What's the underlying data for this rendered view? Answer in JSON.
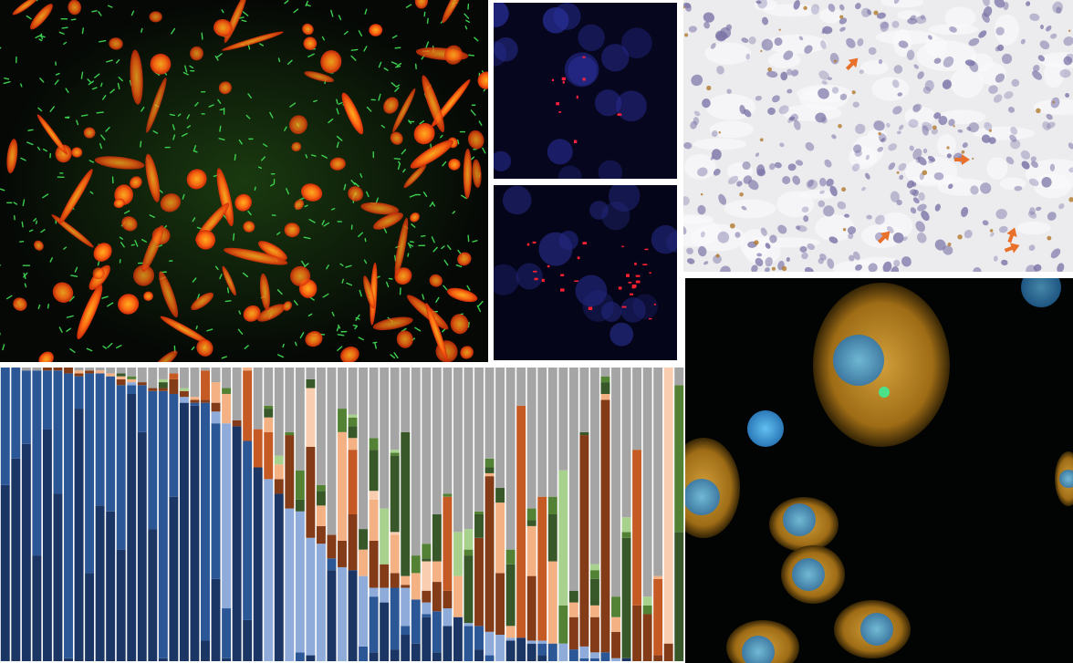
{
  "panels": {
    "fluorescence_red_green": {
      "icon": "microscopy-image",
      "colors": {
        "background": "#050805",
        "cells": "#ff5a14",
        "bacteria": "#3ccf4e"
      }
    },
    "fluorescence_blue_top": {
      "icon": "microscopy-image",
      "colors": {
        "background": "#06061e",
        "nuclei": "#2a2f9a",
        "signal": "#ff2040"
      }
    },
    "fluorescence_blue_bottom": {
      "icon": "microscopy-image",
      "colors": {
        "background": "#05051a",
        "nuclei": "#23287e",
        "signal": "#ff2030"
      }
    },
    "histology_stain": {
      "icon": "microscopy-image",
      "colors": {
        "background": "#ecebee",
        "nuclei": "#7c76a8",
        "stain": "#b0782a",
        "arrows": "#e8702a"
      }
    },
    "confocal_cells": {
      "icon": "microscopy-image",
      "colors": {
        "background": "#020303",
        "cytoplasm": "#d99a2a",
        "nuclei": "#3aa0d8",
        "inclusion": "#4be08a"
      }
    }
  },
  "chart_data": {
    "type": "bar",
    "stacked": true,
    "normalized_percent": true,
    "grid": false,
    "legend": "none",
    "ylim": [
      0,
      100
    ],
    "series_colors": [
      "#1b3564",
      "#2b5797",
      "#8eabd9",
      "#843c18",
      "#c65a24",
      "#f4b183",
      "#f8cdb0",
      "#38582a",
      "#548235",
      "#a9d18e",
      "#a5a5a5"
    ],
    "bars": [
      [
        60,
        40,
        0,
        0,
        0,
        0,
        0,
        0,
        0,
        0,
        0
      ],
      [
        69,
        31,
        0,
        0,
        0,
        0,
        0,
        0,
        0,
        0,
        0
      ],
      [
        74,
        25,
        0,
        0,
        0,
        0,
        0,
        0,
        0,
        0,
        1
      ],
      [
        36,
        63,
        0,
        0,
        0,
        0,
        0,
        0,
        0,
        0,
        1
      ],
      [
        79,
        20,
        0,
        1,
        0,
        0,
        0,
        0,
        0,
        0,
        0
      ],
      [
        57,
        42,
        0,
        1,
        0,
        0,
        0,
        0,
        0,
        0,
        0
      ],
      [
        1,
        97,
        0,
        2,
        0,
        0,
        0,
        0,
        0,
        0,
        0
      ],
      [
        86,
        11,
        0,
        1,
        0,
        1,
        0,
        0,
        0,
        0,
        1
      ],
      [
        30,
        68,
        0,
        1,
        0,
        0,
        0,
        0,
        0,
        0,
        1
      ],
      [
        53,
        45,
        0,
        0,
        0,
        1,
        0,
        0,
        0,
        0,
        1
      ],
      [
        51,
        46,
        0,
        0,
        0,
        1,
        0,
        0,
        0,
        0,
        2
      ],
      [
        38,
        56,
        0,
        2,
        0,
        1,
        0,
        1,
        0,
        0,
        2
      ],
      [
        91,
        3,
        1,
        0,
        0,
        1,
        0,
        0,
        1,
        0,
        3
      ],
      [
        78,
        16,
        0,
        1,
        0,
        0,
        0,
        0,
        0,
        0,
        5
      ],
      [
        45,
        47,
        0,
        1,
        0,
        0,
        0,
        0,
        0,
        0,
        7
      ],
      [
        1,
        91,
        0,
        1,
        0,
        0,
        0,
        2,
        0,
        1,
        4
      ],
      [
        56,
        35,
        0,
        5,
        2,
        0,
        0,
        0,
        0,
        0,
        2
      ],
      [
        88,
        0,
        2,
        2,
        0,
        0,
        0,
        0,
        0,
        1,
        7
      ],
      [
        87,
        1,
        0,
        1,
        0,
        1,
        0,
        0,
        0,
        0,
        10
      ],
      [
        7,
        81,
        0,
        1,
        10,
        0,
        0,
        0,
        0,
        0,
        1
      ],
      [
        28,
        53,
        4,
        3,
        0,
        7,
        0,
        0,
        0,
        0,
        5
      ],
      [
        1,
        17,
        63,
        0,
        0,
        10,
        0,
        0,
        2,
        0,
        7
      ],
      [
        80,
        0,
        0,
        2,
        0,
        0,
        0,
        0,
        0,
        0,
        18
      ],
      [
        14,
        61,
        0,
        0,
        24,
        1,
        0,
        0,
        0,
        0,
        0
      ],
      [
        66,
        0,
        0,
        0,
        13,
        0,
        0,
        0,
        0,
        0,
        21
      ],
      [
        0,
        0,
        62,
        0,
        16,
        5,
        0,
        3,
        1,
        0,
        13
      ],
      [
        57,
        0,
        0,
        5,
        0,
        5,
        0,
        0,
        0,
        3,
        30
      ],
      [
        0,
        0,
        52,
        25,
        0,
        0,
        0,
        0,
        1,
        0,
        22
      ],
      [
        0,
        3,
        48,
        0,
        0,
        0,
        0,
        4,
        10,
        0,
        35
      ],
      [
        2,
        0,
        40,
        31,
        0,
        0,
        20,
        3,
        0,
        0,
        4
      ],
      [
        0,
        0,
        40,
        6,
        0,
        7,
        0,
        5,
        2,
        0,
        40
      ],
      [
        31,
        4,
        0,
        8,
        0,
        0,
        0,
        0,
        0,
        0,
        57
      ],
      [
        0,
        0,
        32,
        9,
        0,
        37,
        0,
        0,
        8,
        0,
        14
      ],
      [
        31,
        0,
        0,
        19,
        22,
        4,
        0,
        4,
        3,
        1,
        16
      ],
      [
        0,
        5,
        24,
        0,
        0,
        9,
        0,
        7,
        0,
        0,
        55
      ],
      [
        3,
        19,
        3,
        16,
        0,
        14,
        3,
        14,
        4,
        0,
        24
      ],
      [
        20,
        0,
        5,
        8,
        0,
        0,
        0,
        0,
        0,
        19,
        48
      ],
      [
        4,
        21,
        0,
        5,
        0,
        13,
        1,
        26,
        1,
        1,
        28
      ],
      [
        9,
        3,
        13,
        1,
        0,
        3,
        0,
        49,
        0,
        0,
        22
      ],
      [
        6,
        15,
        0,
        0,
        0,
        9,
        0,
        0,
        6,
        0,
        64
      ],
      [
        15,
        1,
        4,
        4,
        0,
        0,
        10,
        1,
        5,
        0,
        60
      ],
      [
        3,
        14,
        0,
        10,
        0,
        7,
        0,
        16,
        0,
        0,
        50
      ],
      [
        12,
        0,
        6,
        6,
        32,
        0,
        0,
        0,
        1,
        0,
        43
      ],
      [
        15,
        0,
        0,
        0,
        0,
        14,
        0,
        0,
        0,
        15,
        56
      ],
      [
        0,
        12,
        1,
        0,
        0,
        0,
        0,
        23,
        2,
        7,
        55
      ],
      [
        4,
        8,
        0,
        30,
        0,
        0,
        0,
        8,
        1,
        0,
        49
      ],
      [
        0,
        2,
        8,
        53,
        0,
        1,
        0,
        2,
        3,
        0,
        31
      ],
      [
        0,
        0,
        9,
        21,
        0,
        24,
        0,
        5,
        0,
        0,
        41
      ],
      [
        7,
        0,
        1,
        0,
        0,
        4,
        0,
        21,
        5,
        0,
        62
      ],
      [
        8,
        0,
        0,
        0,
        79,
        0,
        0,
        0,
        0,
        0,
        13
      ],
      [
        6,
        0,
        1,
        22,
        0,
        17,
        0,
        2,
        4,
        0,
        48
      ],
      [
        2,
        4,
        1,
        0,
        49,
        0,
        0,
        0,
        0,
        0,
        44
      ],
      [
        0,
        6,
        0,
        0,
        0,
        28,
        0,
        16,
        6,
        0,
        44
      ],
      [
        0,
        0,
        6,
        0,
        0,
        0,
        0,
        0,
        13,
        46,
        35
      ],
      [
        0,
        4,
        0,
        11,
        0,
        5,
        0,
        4,
        0,
        0,
        76
      ],
      [
        0,
        1,
        4,
        72,
        0,
        0,
        0,
        1,
        0,
        0,
        22
      ],
      [
        0,
        1,
        2,
        12,
        0,
        4,
        0,
        9,
        3,
        2,
        67
      ],
      [
        0,
        3,
        0,
        86,
        0,
        2,
        0,
        4,
        2,
        0,
        3
      ],
      [
        0,
        0,
        1,
        9,
        0,
        5,
        0,
        0,
        7,
        0,
        78
      ],
      [
        1,
        0,
        0,
        0,
        0,
        0,
        0,
        41,
        2,
        5,
        51
      ],
      [
        0,
        0,
        0,
        19,
        53,
        0,
        0,
        0,
        0,
        0,
        28
      ],
      [
        0,
        0,
        0,
        16,
        0,
        0,
        0,
        0,
        3,
        3,
        78
      ],
      [
        0,
        0,
        0,
        2,
        26,
        1,
        0,
        0,
        0,
        0,
        71
      ],
      [
        0,
        0,
        0,
        6,
        0,
        0,
        94,
        0,
        0,
        0,
        0
      ],
      [
        0,
        0,
        0,
        0,
        0,
        0,
        0,
        44,
        50,
        0,
        6
      ]
    ]
  }
}
